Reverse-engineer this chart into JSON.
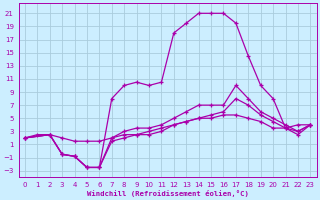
{
  "xlabel": "Windchill (Refroidissement éolien,°C)",
  "ylabel": "",
  "background_color": "#cceeff",
  "grid_color": "#aaccdd",
  "line_color": "#aa00aa",
  "xlim": [
    -0.5,
    23.5
  ],
  "ylim": [
    -4,
    22.5
  ],
  "xticks": [
    0,
    1,
    2,
    3,
    4,
    5,
    6,
    7,
    8,
    9,
    10,
    11,
    12,
    13,
    14,
    15,
    16,
    17,
    18,
    19,
    20,
    21,
    22,
    23
  ],
  "yticks": [
    -3,
    -1,
    1,
    3,
    5,
    7,
    9,
    11,
    13,
    15,
    17,
    19,
    21
  ],
  "curves": [
    {
      "x": [
        0,
        2,
        3,
        4,
        5,
        6,
        7,
        8,
        9,
        10,
        11,
        12,
        13,
        14,
        15,
        16,
        17,
        18,
        19,
        20,
        21,
        22,
        23
      ],
      "y": [
        2,
        2.5,
        -0.5,
        -0.8,
        -2.5,
        -2.5,
        8,
        10,
        10.5,
        10,
        10.5,
        18,
        19.5,
        21,
        21,
        21,
        19.5,
        14.5,
        10,
        8,
        3.5,
        2.5,
        4
      ]
    },
    {
      "x": [
        0,
        2,
        3,
        4,
        5,
        6,
        7,
        8,
        9,
        10,
        11,
        12,
        13,
        14,
        15,
        16,
        17,
        18,
        19,
        20,
        21,
        22,
        23
      ],
      "y": [
        2,
        2.5,
        -0.5,
        -0.8,
        -2.5,
        -2.5,
        2,
        3,
        3.5,
        3.5,
        4,
        5,
        6,
        7,
        7,
        7,
        10,
        8,
        6,
        5,
        4,
        3,
        4
      ]
    },
    {
      "x": [
        0,
        2,
        3,
        4,
        5,
        6,
        7,
        8,
        9,
        10,
        11,
        12,
        13,
        14,
        15,
        16,
        17,
        18,
        19,
        20,
        21,
        22,
        23
      ],
      "y": [
        2,
        2.5,
        -0.5,
        -0.8,
        -2.5,
        -2.5,
        1.5,
        2.0,
        2.5,
        2.5,
        3.0,
        4.0,
        4.5,
        5.0,
        5.5,
        6.0,
        8.0,
        7.0,
        5.5,
        4.5,
        3.5,
        3.0,
        4.0
      ]
    },
    {
      "x": [
        0,
        1,
        2,
        3,
        4,
        5,
        6,
        7,
        8,
        9,
        10,
        11,
        12,
        13,
        14,
        15,
        16,
        17,
        18,
        19,
        20,
        21,
        22,
        23
      ],
      "y": [
        2,
        2.5,
        2.5,
        2.0,
        1.5,
        1.5,
        1.5,
        2.0,
        2.5,
        2.5,
        3.0,
        3.5,
        4.0,
        4.5,
        5.0,
        5.0,
        5.5,
        5.5,
        5.0,
        4.5,
        3.5,
        3.5,
        4.0,
        4.0
      ]
    }
  ]
}
